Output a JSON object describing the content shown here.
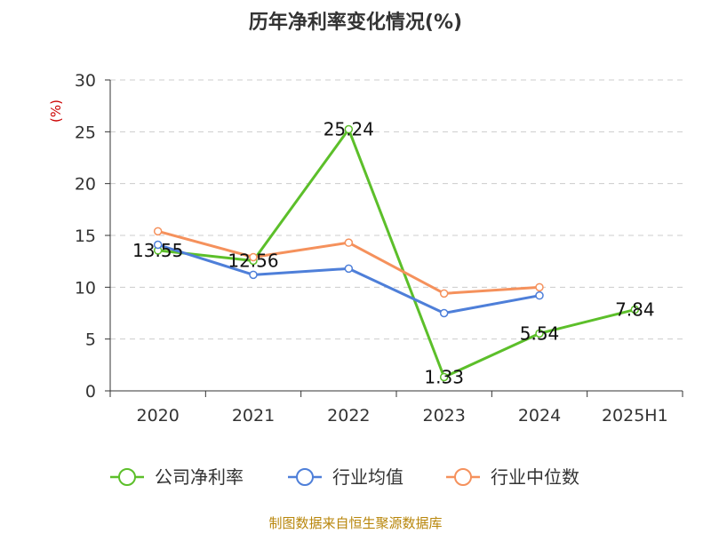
{
  "chart_data": {
    "type": "line",
    "title": "历年净利率变化情况(%)",
    "ylabel": "(%)",
    "categories": [
      "2020",
      "2021",
      "2022",
      "2023",
      "2024",
      "2025H1"
    ],
    "ylim": [
      0,
      30
    ],
    "yticks": [
      0,
      5,
      10,
      15,
      20,
      25,
      30
    ],
    "grid": true,
    "legend_position": "bottom",
    "series": [
      {
        "name": "公司净利率",
        "color": "#5cbf2a",
        "values": [
          13.55,
          12.56,
          25.24,
          1.33,
          5.54,
          7.84
        ],
        "labels": [
          "13.55",
          "12.56",
          "25.24",
          "1.33",
          "5.54",
          "7.84"
        ]
      },
      {
        "name": "行业均值",
        "color": "#4e7fd9",
        "values": [
          14.1,
          11.2,
          11.8,
          7.5,
          9.2,
          null
        ]
      },
      {
        "name": "行业中位数",
        "color": "#f5915c",
        "values": [
          15.4,
          12.9,
          14.3,
          9.4,
          10.0,
          null
        ]
      }
    ]
  },
  "source_text": "制图数据来自恒生聚源数据库"
}
